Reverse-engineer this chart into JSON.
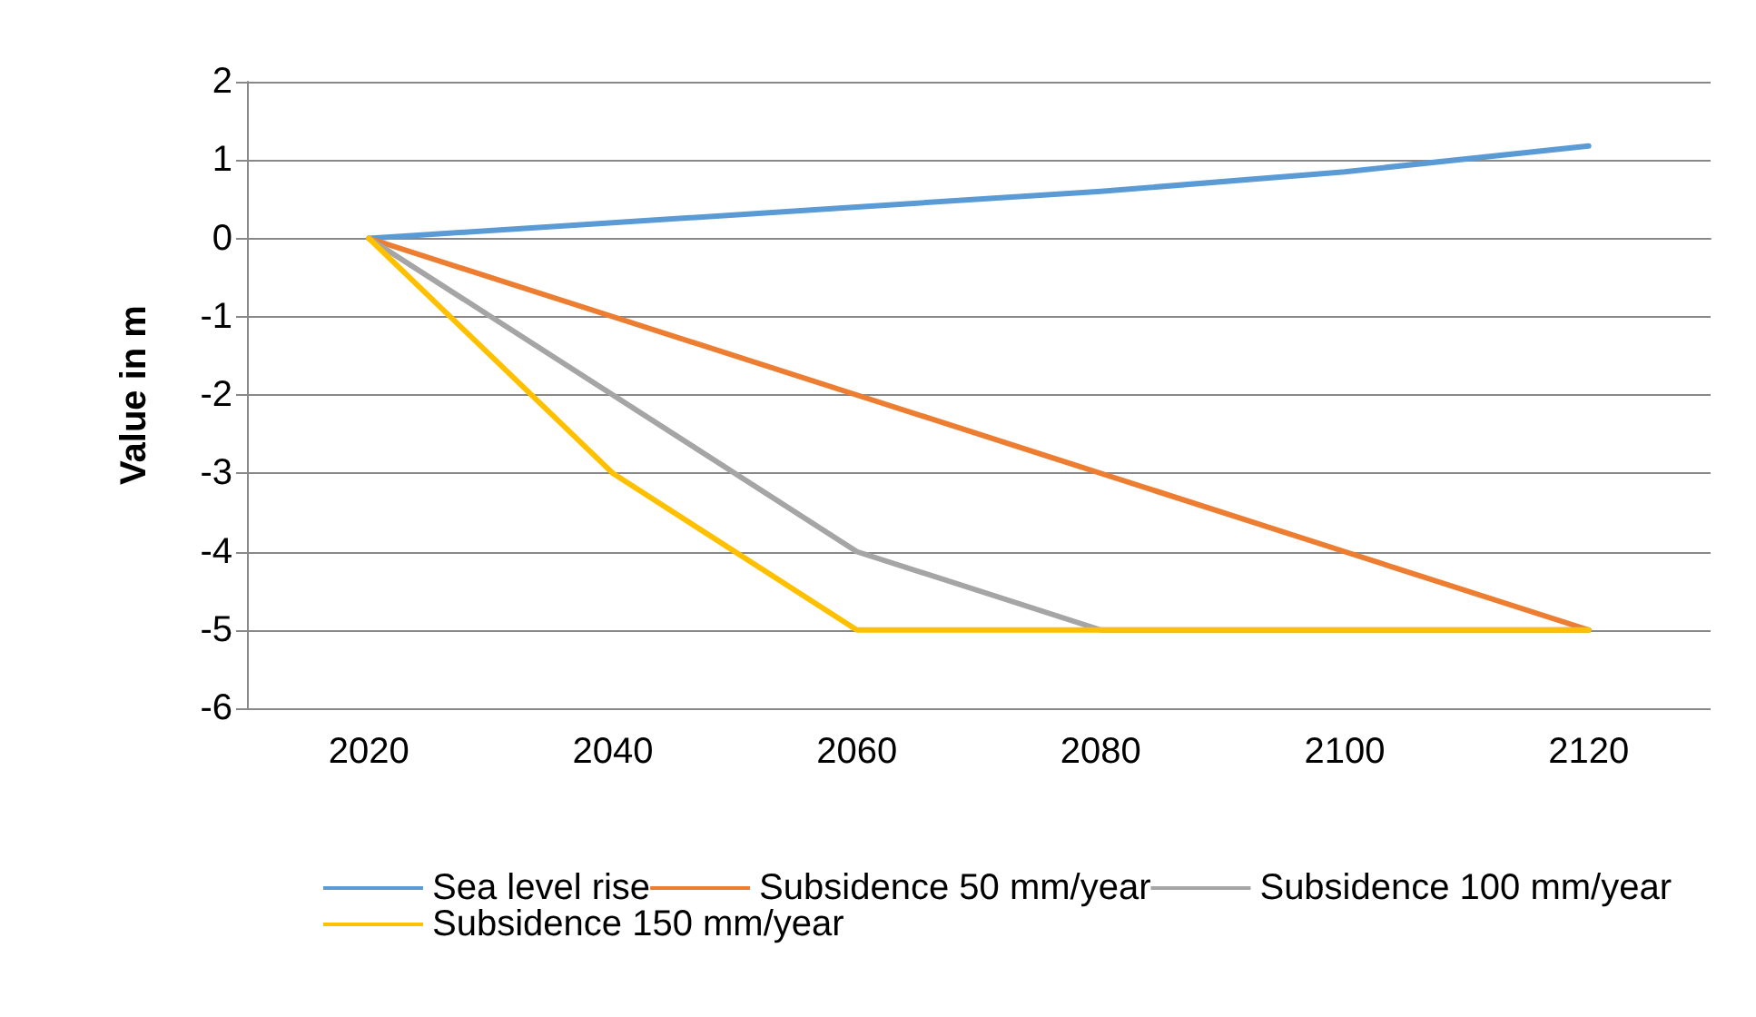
{
  "chart_data": {
    "type": "line",
    "ylabel": "Value in m",
    "categories": [
      "2020",
      "2040",
      "2060",
      "2080",
      "2100",
      "2120"
    ],
    "series": [
      {
        "name": "Sea level rise",
        "color": "#5b9bd5",
        "values": [
          0,
          0.2,
          0.4,
          0.6,
          0.85,
          1.18
        ]
      },
      {
        "name": "Subsidence 50 mm/year",
        "color": "#ed7d31",
        "values": [
          0,
          -1,
          -2,
          -3,
          -4,
          -5
        ]
      },
      {
        "name": "Subsidence 100 mm/year",
        "color": "#a5a5a5",
        "values": [
          0,
          -2,
          -4,
          -5,
          -5,
          -5
        ]
      },
      {
        "name": "Subsidence 150 mm/year",
        "color": "#ffc000",
        "values": [
          0,
          -3,
          -5,
          -5,
          -5,
          -5
        ]
      }
    ],
    "ylim": [
      -6,
      2
    ],
    "yticks": [
      -6,
      -5,
      -4,
      -3,
      -2,
      -1,
      0,
      1,
      2
    ],
    "grid": "y",
    "legend": "bottom",
    "marker": "none",
    "line_style": "solid"
  }
}
